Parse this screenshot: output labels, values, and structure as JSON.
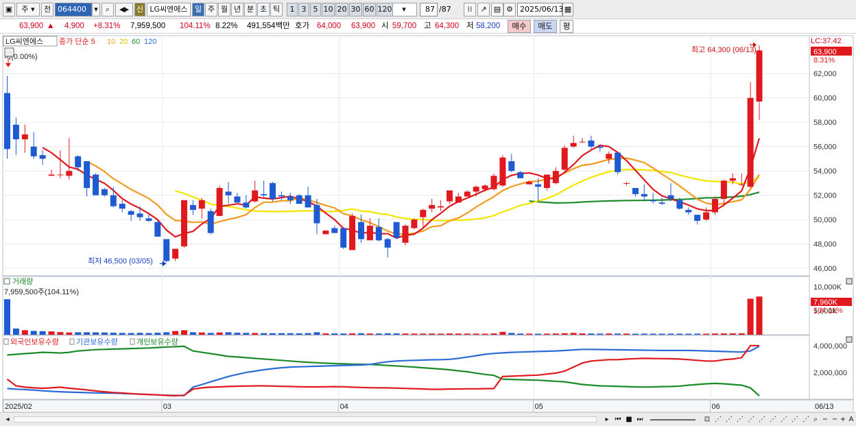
{
  "toolbar": {
    "period_label": "주",
    "prev_label": "전",
    "code_value": "064400",
    "shin_label": "신",
    "stock_name": "LG씨엔에스",
    "period_tabs": [
      "일",
      "주",
      "월",
      "년",
      "분",
      "초",
      "틱"
    ],
    "minute_options": [
      "1",
      "3",
      "5",
      "10",
      "20",
      "30",
      "60",
      "120"
    ],
    "count_value": "87",
    "count_total": "/87",
    "date_value": "2025/06/13"
  },
  "quote": {
    "price": "63,900",
    "change": "4,900",
    "change_pct": "+8.31%",
    "volume": "7,959,500",
    "volume_ratio": "104.11%",
    "turnover": "8.22%",
    "amount": "491,554백만",
    "ask_label": "호가",
    "ask": "64,000",
    "bid": "63,900",
    "open_label": "시",
    "open": "59,700",
    "high_label": "고",
    "high": "64,300",
    "low_label": "저",
    "low": "58,200",
    "buy_label": "매수",
    "sell_label": "매도",
    "eval_label": "평"
  },
  "price_panel": {
    "name_tag": "LG씨엔에스",
    "legend": [
      {
        "label": "종가 단순 5",
        "color": "#e0191e"
      },
      {
        "label": "10",
        "color": "#f39a1e"
      },
      {
        "label": "20",
        "color": "#f2e600"
      },
      {
        "label": "60",
        "color": "#1c8a2a"
      },
      {
        "label": "120",
        "color": "#2b6bd6"
      }
    ],
    "lc_label": "LC:37.42",
    "price_tag": "63,900",
    "pct_tag": "8.31%",
    "ref_label": "저(0.00%)",
    "high_note": "최고 64,300 (06/13)",
    "low_note": "최저 46,500 (03/05)",
    "yticks": [
      "62,000",
      "60,000",
      "58,000",
      "56,000",
      "54,000",
      "52,000",
      "50,000",
      "48,000",
      "46,000"
    ]
  },
  "volume_panel": {
    "title": "거래량",
    "current": "7,959,500주(104.11%)",
    "yticks": [
      "10,000K",
      "5,000K"
    ],
    "tag": "7,960K",
    "tag_pct": "104.11%"
  },
  "holding_panel": {
    "legend": [
      {
        "label": "외국인보유수량",
        "color": "#e0191e"
      },
      {
        "label": "기관보유수량",
        "color": "#2b6bd6"
      },
      {
        "label": "개인보유수량",
        "color": "#1c8a2a"
      }
    ],
    "yticks": [
      "4,000,000",
      "2,000,000"
    ]
  },
  "xaxis": {
    "labels": [
      "2025/02",
      "03",
      "04",
      "05",
      "06"
    ],
    "last_date": "06/13"
  },
  "chart_data": {
    "type": "candlestick",
    "price_range": [
      45500,
      65000
    ],
    "candles": [
      [
        60400,
        61800,
        55000,
        55800
      ],
      [
        57800,
        58400,
        55300,
        56600
      ],
      [
        56600,
        57800,
        55500,
        57000
      ],
      [
        56000,
        57200,
        55000,
        55200
      ],
      [
        55300,
        55700,
        54500,
        55000
      ],
      [
        53600,
        54100,
        53600,
        53700
      ],
      [
        53700,
        55700,
        53400,
        53700
      ],
      [
        53600,
        56700,
        53300,
        54000
      ],
      [
        55200,
        55300,
        54000,
        54300
      ],
      [
        54800,
        54800,
        51900,
        52600
      ],
      [
        53700,
        53800,
        52000,
        52000
      ],
      [
        52500,
        52600,
        51900,
        52000
      ],
      [
        52000,
        52700,
        51000,
        51100
      ],
      [
        51300,
        51600,
        50600,
        50900
      ],
      [
        50700,
        50800,
        49900,
        50400
      ],
      [
        50500,
        51100,
        49900,
        50200
      ],
      [
        50100,
        50400,
        49800,
        49900
      ],
      [
        49800,
        49900,
        48600,
        48600
      ],
      [
        48400,
        48400,
        46500,
        46600
      ],
      [
        46800,
        47500,
        46600,
        47600
      ],
      [
        47800,
        51600,
        47700,
        51600
      ],
      [
        51200,
        51600,
        50400,
        50800
      ],
      [
        50900,
        51800,
        50100,
        51600
      ],
      [
        50700,
        50900,
        48800,
        48900
      ],
      [
        50300,
        52800,
        50300,
        52600
      ],
      [
        52300,
        53100,
        51300,
        52000
      ],
      [
        51900,
        52200,
        51400,
        51400
      ],
      [
        51400,
        52000,
        50900,
        51000
      ],
      [
        51500,
        53200,
        51400,
        52400
      ],
      [
        52100,
        53200,
        51800,
        52000
      ],
      [
        53000,
        53100,
        51500,
        51700
      ],
      [
        52000,
        52300,
        51600,
        51900
      ],
      [
        51900,
        52200,
        51300,
        51600
      ],
      [
        52000,
        52100,
        51300,
        51300
      ],
      [
        52000,
        52700,
        51000,
        51000
      ],
      [
        51200,
        51700,
        48800,
        49700
      ],
      [
        48800,
        49100,
        48800,
        49100
      ],
      [
        49300,
        49500,
        48900,
        48900
      ],
      [
        49300,
        49400,
        47600,
        47700
      ],
      [
        47500,
        50500,
        47500,
        50300
      ],
      [
        49800,
        50400,
        48100,
        48400
      ],
      [
        48300,
        50100,
        48300,
        49500
      ],
      [
        49400,
        50100,
        48200,
        48300
      ],
      [
        48400,
        48500,
        46900,
        47700
      ],
      [
        49800,
        49800,
        48500,
        48500
      ],
      [
        48100,
        49600,
        47900,
        49500
      ],
      [
        49300,
        50100,
        49200,
        50000
      ],
      [
        50200,
        50900,
        49300,
        50800
      ],
      [
        50900,
        51700,
        50600,
        51200
      ],
      [
        51000,
        51600,
        50700,
        51100
      ],
      [
        51500,
        52400,
        51300,
        52400
      ],
      [
        51400,
        52200,
        51400,
        51900
      ],
      [
        51900,
        52400,
        51900,
        52300
      ],
      [
        52300,
        52800,
        51900,
        52700
      ],
      [
        52500,
        52900,
        52300,
        52800
      ],
      [
        52500,
        53800,
        52400,
        53600
      ],
      [
        52800,
        55300,
        52700,
        55100
      ],
      [
        54800,
        55400,
        53900,
        54000
      ],
      [
        53900,
        54000,
        53400,
        53400
      ],
      [
        52900,
        53200,
        52900,
        53100
      ],
      [
        52900,
        53400,
        51500,
        52700
      ],
      [
        52600,
        53700,
        52400,
        53700
      ],
      [
        53000,
        54300,
        52900,
        54000
      ],
      [
        54100,
        56100,
        53900,
        55900
      ],
      [
        56000,
        56900,
        55900,
        56300
      ],
      [
        56400,
        56700,
        56300,
        56400
      ],
      [
        56500,
        56900,
        55800,
        56000
      ],
      [
        56000,
        56200,
        55600,
        55900
      ],
      [
        55000,
        55600,
        54600,
        55400
      ],
      [
        55500,
        55500,
        53700,
        53900
      ],
      [
        53000,
        53100,
        52800,
        53000
      ],
      [
        52600,
        52600,
        51900,
        52100
      ],
      [
        52100,
        52900,
        51500,
        51900
      ],
      [
        51600,
        52200,
        51300,
        51500
      ],
      [
        51400,
        51800,
        51200,
        51300
      ],
      [
        52000,
        53000,
        51500,
        51700
      ],
      [
        51600,
        51800,
        50800,
        50900
      ],
      [
        50800,
        51000,
        50400,
        50600
      ],
      [
        50400,
        50400,
        49600,
        49900
      ],
      [
        50000,
        51000,
        49900,
        50600
      ],
      [
        50600,
        51900,
        50400,
        51700
      ],
      [
        51700,
        53300,
        51100,
        53200
      ],
      [
        53200,
        53800,
        52900,
        53400
      ],
      [
        52900,
        53800,
        52800,
        52900
      ],
      [
        52700,
        61300,
        52600,
        60000
      ],
      [
        59700,
        64300,
        58200,
        63900
      ]
    ],
    "volume_max_k": 10000,
    "volume_k": [
      7400,
      1300,
      950,
      800,
      750,
      700,
      560,
      480,
      520,
      520,
      500,
      470,
      430,
      380,
      360,
      400,
      360,
      420,
      520,
      780,
      950,
      520,
      480,
      380,
      480,
      520,
      420,
      380,
      360,
      330,
      320,
      330,
      320,
      300,
      340,
      520,
      300,
      280,
      260,
      300,
      320,
      260,
      260,
      300,
      280,
      260,
      250,
      240,
      250,
      230,
      270,
      250,
      240,
      230,
      220,
      280,
      600,
      380,
      250,
      230,
      220,
      230,
      260,
      320,
      380,
      290,
      260,
      240,
      260,
      250,
      240,
      220,
      230,
      220,
      220,
      230,
      220,
      210,
      230,
      220,
      260,
      280,
      300,
      310,
      7500,
      7960
    ],
    "holdings_range": [
      0,
      4400000
    ],
    "foreign": [
      1500000,
      1000000,
      900000,
      850000,
      820000,
      850000,
      900000,
      820000,
      760000,
      700000,
      620000,
      560000,
      500000,
      470000,
      420000,
      380000,
      360000,
      320000,
      280000,
      260000,
      300000,
      750000,
      850000,
      900000,
      920000,
      950000,
      970000,
      980000,
      1000000,
      1000000,
      980000,
      960000,
      950000,
      930000,
      920000,
      920000,
      930000,
      940000,
      930000,
      900000,
      880000,
      860000,
      850000,
      850000,
      830000,
      810000,
      790000,
      770000,
      740000,
      740000,
      760000,
      770000,
      780000,
      780000,
      790000,
      800000,
      1700000,
      1720000,
      1750000,
      1780000,
      1800000,
      1880000,
      1950000,
      2100000,
      2400000,
      2700000,
      2850000,
      2900000,
      2950000,
      2950000,
      3000000,
      3030000,
      3050000,
      3040000,
      3030000,
      3020000,
      3000000,
      2950000,
      2900000,
      2850000,
      2850000,
      2950000,
      3000000,
      3100000,
      4000000,
      4000000
    ],
    "institution": [
      800000,
      750000,
      720000,
      680000,
      630000,
      590000,
      560000,
      530000,
      510000,
      490000,
      470000,
      460000,
      450000,
      430000,
      410000,
      380000,
      350000,
      320000,
      300000,
      280000,
      270000,
      900000,
      1100000,
      1300000,
      1500000,
      1700000,
      1850000,
      2000000,
      2100000,
      2200000,
      2280000,
      2350000,
      2400000,
      2420000,
      2440000,
      2460000,
      2480000,
      2500000,
      2520000,
      2540000,
      2560000,
      2600000,
      2700000,
      2800000,
      2850000,
      2880000,
      2900000,
      2920000,
      2940000,
      2950000,
      2980000,
      3050000,
      3150000,
      3250000,
      3350000,
      3420000,
      3460000,
      3500000,
      3520000,
      3540000,
      3560000,
      3580000,
      3600000,
      3640000,
      3680000,
      3720000,
      3720000,
      3710000,
      3700000,
      3690000,
      3680000,
      3670000,
      3660000,
      3650000,
      3640000,
      3640000,
      3640000,
      3640000,
      3620000,
      3600000,
      3580000,
      3560000,
      3540000,
      3520000,
      3600000,
      3950000
    ],
    "individual": [
      3300000,
      3350000,
      3400000,
      3450000,
      3500000,
      3480000,
      3450000,
      3500000,
      3600000,
      3650000,
      3700000,
      3720000,
      3740000,
      3760000,
      3780000,
      3800000,
      3820000,
      3860000,
      3900000,
      3920000,
      3950000,
      3600000,
      3500000,
      3400000,
      3300000,
      3200000,
      3150000,
      3100000,
      3050000,
      3000000,
      2950000,
      2900000,
      2850000,
      2800000,
      2760000,
      2720000,
      2690000,
      2660000,
      2640000,
      2620000,
      2610000,
      2600000,
      2560000,
      2520000,
      2480000,
      2440000,
      2400000,
      2350000,
      2300000,
      2250000,
      2200000,
      2120000,
      2050000,
      1950000,
      1850000,
      1780000,
      1500000,
      1480000,
      1460000,
      1440000,
      1420000,
      1380000,
      1340000,
      1300000,
      1200000,
      1100000,
      1050000,
      1000000,
      980000,
      960000,
      940000,
      920000,
      910000,
      920000,
      940000,
      950000,
      980000,
      1050000,
      1100000,
      1150000,
      1180000,
      1150000,
      1100000,
      1050000,
      850000,
      250000
    ]
  }
}
